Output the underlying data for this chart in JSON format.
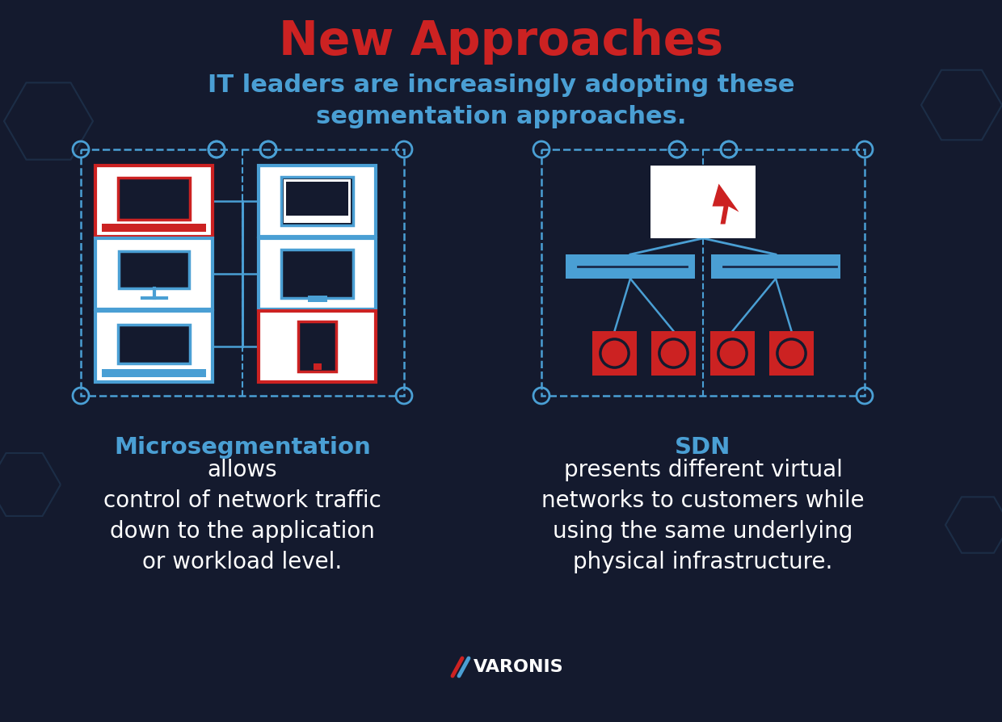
{
  "bg_color": "#141a2e",
  "title": "New Approaches",
  "title_color": "#cc2222",
  "subtitle": "IT leaders are increasingly adopting these\nsegmentation approaches.",
  "subtitle_color": "#4a9fd4",
  "blue_color": "#4a9fd4",
  "red_color": "#cc2222",
  "white_color": "#ffffff",
  "dark_color": "#141a2e",
  "panel_color": "#1a2240",
  "left_label_bold": "Microsegmentation",
  "left_label_rest": " allows\ncontrol of network traffic\ndown to the application\nor workload level.",
  "right_label_bold": "SDN",
  "right_label_rest": " presents different virtual\nnetworks to customers while\nusing the same underlying\nphysical infrastructure.",
  "label_color": "#ffffff",
  "varonis_color": "#ffffff",
  "dashed_color": "#4a9fd4"
}
